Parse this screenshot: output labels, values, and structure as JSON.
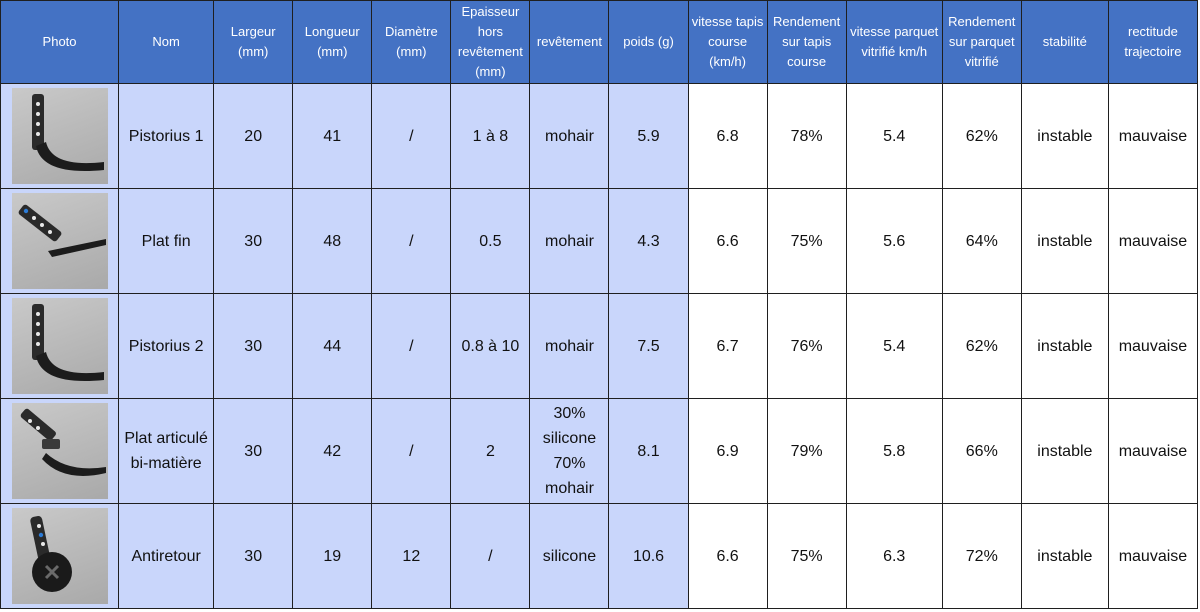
{
  "columns": [
    "Photo",
    "Nom",
    "Largeur (mm)",
    "Longueur (mm)",
    "Diamètre (mm)",
    "Epaisseur hors revêtement (mm)",
    "revêtement",
    "poids (g)",
    "vitesse tapis course (km/h)",
    "Rendement sur tapis course",
    "vitesse parquet vitrifié km/h",
    "Rendement sur parquet vitrifié",
    "stabilité",
    "rectitude trajectoire"
  ],
  "rows": [
    {
      "photo_icon": "curved-blade-photo-icon",
      "cells": [
        "Pistorius 1",
        "20",
        "41",
        "/",
        "1 à 8",
        "mohair",
        "5.9",
        "6.8",
        "78%",
        "5.4",
        "62%",
        "instable",
        "mauvaise"
      ]
    },
    {
      "photo_icon": "flat-blade-photo-icon",
      "cells": [
        "Plat fin",
        "30",
        "48",
        "/",
        "0.5",
        "mohair",
        "4.3",
        "6.6",
        "75%",
        "5.6",
        "64%",
        "instable",
        "mauvaise"
      ]
    },
    {
      "photo_icon": "curved-blade-photo-icon",
      "cells": [
        "Pistorius 2",
        "30",
        "44",
        "/",
        "0.8 à 10",
        "mohair",
        "7.5",
        "6.7",
        "76%",
        "5.4",
        "62%",
        "instable",
        "mauvaise"
      ]
    },
    {
      "photo_icon": "articulated-blade-photo-icon",
      "cells": [
        "Plat articulé bi-matière",
        "30",
        "42",
        "/",
        "2",
        "30% silicone 70% mohair",
        "8.1",
        "6.9",
        "79%",
        "5.8",
        "66%",
        "instable",
        "mauvaise"
      ]
    },
    {
      "photo_icon": "anti-return-wheel-photo-icon",
      "cells": [
        "Antiretour",
        "30",
        "19",
        "12",
        "/",
        "silicone",
        "10.6",
        "6.6",
        "75%",
        "6.3",
        "72%",
        "instable",
        "mauvaise"
      ]
    }
  ],
  "colors": {
    "header_bg": "#4472c4",
    "header_text": "#ffffff",
    "shaded_cell_bg": "#c9d6fb",
    "plain_cell_bg": "#ffffff",
    "border": "#1f1f1f"
  }
}
